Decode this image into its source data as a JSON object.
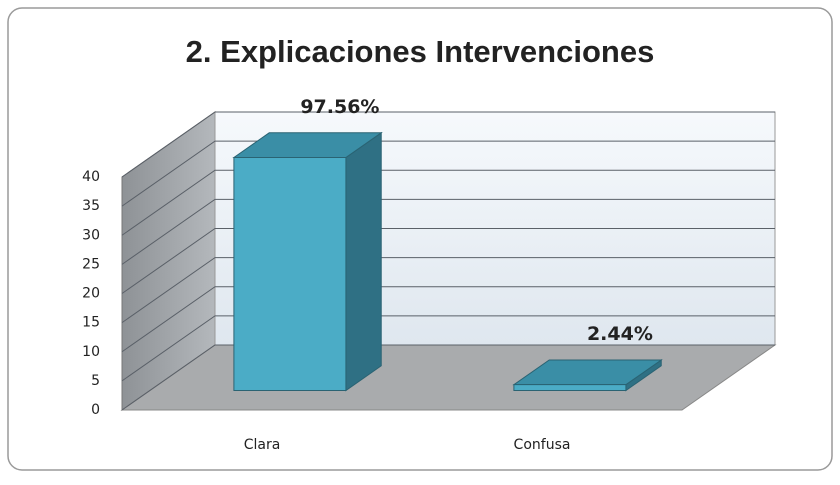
{
  "chart_data": {
    "type": "bar3d",
    "title": "2. Explicaciones Intervenciones",
    "categories": [
      "Clara",
      "Confusa"
    ],
    "values": [
      40,
      1
    ],
    "value_labels": [
      "97.56%",
      "2.44%"
    ],
    "color": "#4bacc6",
    "ylim": [
      0,
      40
    ],
    "yticks": [
      0,
      5,
      10,
      15,
      20,
      25,
      30,
      35,
      40
    ],
    "grid": true
  }
}
